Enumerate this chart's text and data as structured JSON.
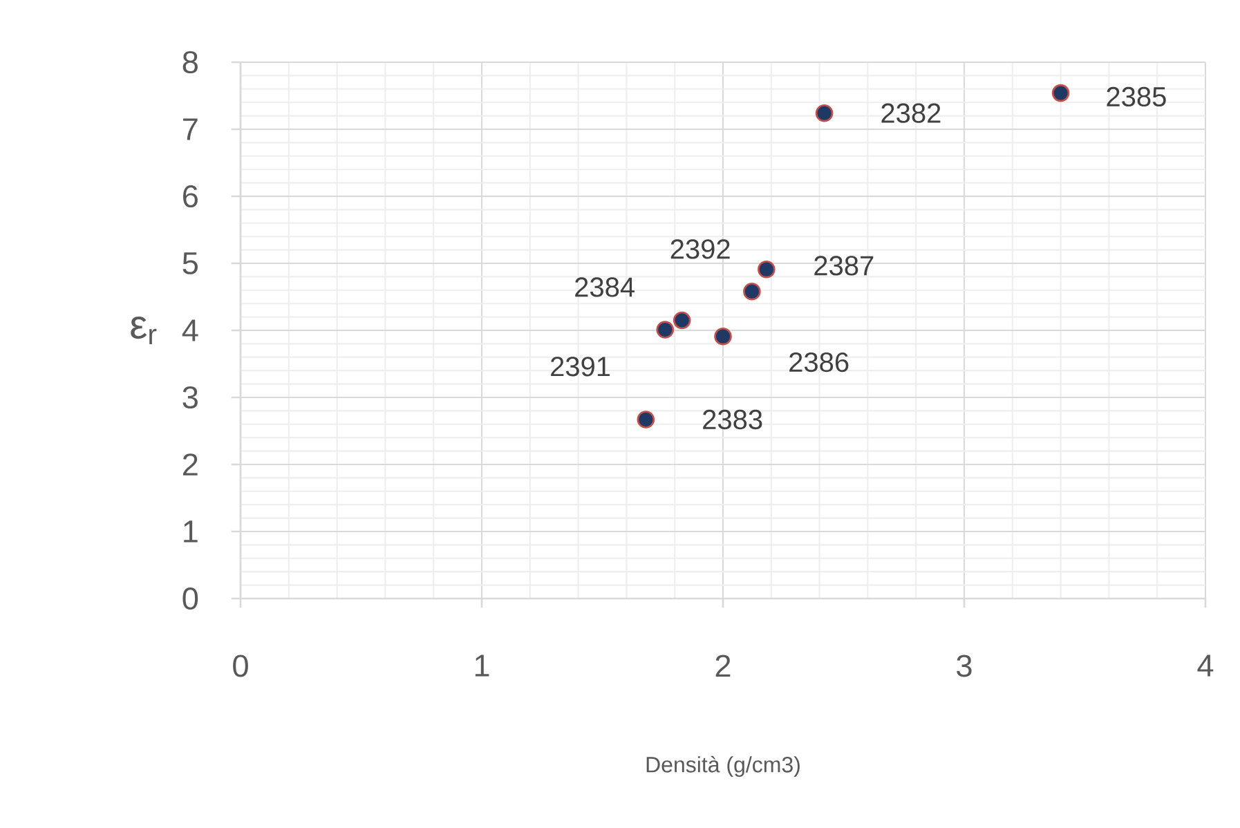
{
  "chart_data": {
    "type": "scatter",
    "xlabel": "Densità (g/cm3)",
    "ylabel": "ε$_{r}$",
    "x": [
      2.42,
      1.68,
      1.83,
      3.4,
      2.0,
      2.18,
      1.76,
      2.12
    ],
    "values": [
      7.24,
      2.67,
      4.15,
      7.54,
      3.91,
      4.91,
      4.01,
      4.58
    ],
    "annotations": [
      {
        "text": "2382",
        "x": 2.42,
        "y": 7.24
      },
      {
        "text": "2383",
        "x": 1.68,
        "y": 2.67
      },
      {
        "text": "2384",
        "x": 1.83,
        "y": 4.15
      },
      {
        "text": "2385",
        "x": 3.4,
        "y": 7.54
      },
      {
        "text": "2386",
        "x": 2.0,
        "y": 3.91
      },
      {
        "text": "2387",
        "x": 2.18,
        "y": 4.91
      },
      {
        "text": "2391",
        "x": 1.76,
        "y": 4.01
      },
      {
        "text": "2392",
        "x": 2.12,
        "y": 4.58
      }
    ],
    "color": "#203864",
    "marker": "circle",
    "xlim": [
      0,
      4
    ],
    "ylim": [
      0,
      8
    ],
    "xticks": [
      0,
      1,
      2,
      3,
      4
    ],
    "yticks": [
      0,
      1,
      2,
      3,
      4,
      5,
      6,
      7,
      8
    ],
    "grid": true
  }
}
